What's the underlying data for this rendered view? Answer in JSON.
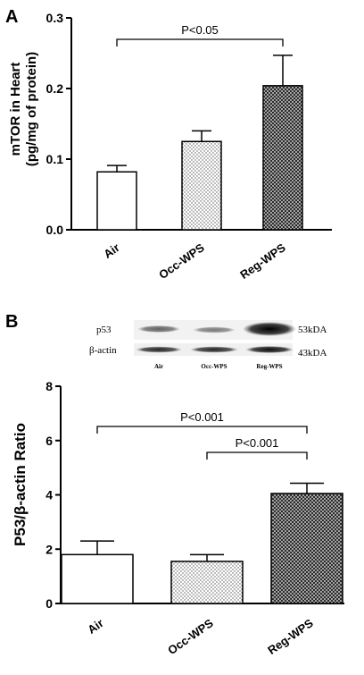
{
  "chart_data": [
    {
      "type": "bar",
      "panel": "A",
      "categories": [
        "Air",
        "Occ-WPS",
        "Reg-WPS"
      ],
      "values": [
        0.082,
        0.125,
        0.204
      ],
      "errors": [
        0.009,
        0.015,
        0.043
      ],
      "patterns": [
        "white",
        "dots",
        "crosshatch"
      ],
      "ylabel_line1": "mTOR in Heart",
      "ylabel_line2": "(pg/mg of protein)",
      "ylim": [
        0,
        0.3
      ],
      "yticks": [
        0,
        0.1,
        0.2,
        0.3
      ],
      "ytick_labels": [
        "0.0",
        "0.1",
        "0.2",
        "0.3"
      ],
      "significance": [
        {
          "from": 0,
          "to": 2,
          "label": "P<0.05"
        }
      ]
    },
    {
      "type": "bar",
      "panel": "B",
      "categories": [
        "Air",
        "Occ-WPS",
        "Reg-WPS"
      ],
      "values": [
        1.8,
        1.55,
        4.05
      ],
      "errors": [
        0.5,
        0.25,
        0.38
      ],
      "patterns": [
        "white",
        "dots",
        "crosshatch"
      ],
      "ylabel": "P53/β-actin Ratio",
      "ylim": [
        0,
        8
      ],
      "yticks": [
        0,
        2,
        4,
        6,
        8
      ],
      "ytick_labels": [
        "0",
        "2",
        "4",
        "6",
        "8"
      ],
      "significance": [
        {
          "from": 0,
          "to": 2,
          "label": "P<0.001"
        },
        {
          "from": 1,
          "to": 2,
          "label": "P<0.001"
        }
      ],
      "blot": {
        "rows": [
          {
            "label": "p53",
            "size": "53kDA"
          },
          {
            "label": "β-actin",
            "size": "43kDA"
          }
        ],
        "lanes": [
          "Air",
          "Occ-WPS",
          "Reg-WPS"
        ]
      }
    }
  ]
}
